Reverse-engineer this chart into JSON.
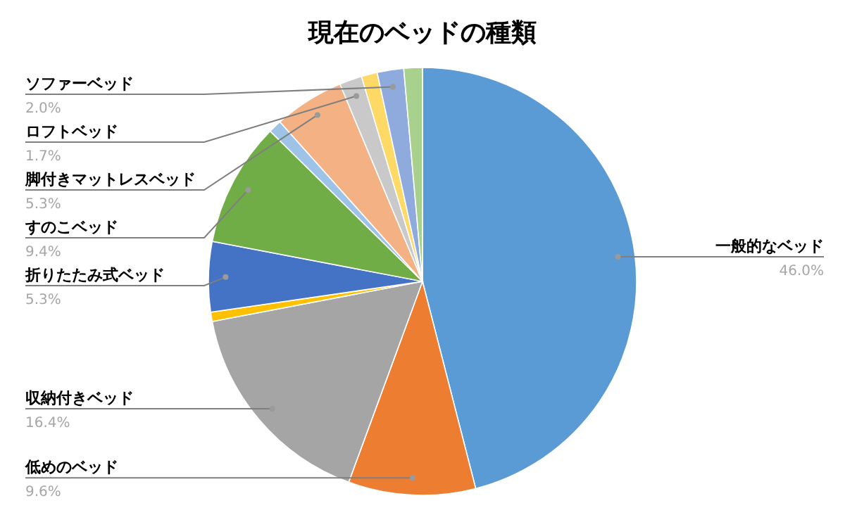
{
  "chart_data": {
    "type": "pie",
    "title": "現在のベッドの種類",
    "categories": [
      "一般的なベッド",
      "低めのベッド",
      "収納付きベッド",
      null,
      "折りたたみ式ベッド",
      "すのこベッド",
      null,
      "脚付きマットレスベッド",
      "ロフトベッド",
      null,
      "ソファーベッド",
      null
    ],
    "values": [
      46.0,
      9.6,
      16.4,
      0.7,
      5.3,
      9.4,
      1.0,
      5.3,
      1.7,
      1.2,
      2.0,
      1.4
    ],
    "colors": [
      "#5b9bd5",
      "#ed7d31",
      "#a5a5a5",
      "#ffc000",
      "#4472c4",
      "#70ad47",
      "#9dc3e6",
      "#f4b183",
      "#c9c9c9",
      "#ffd966",
      "#8faadc",
      "#a9d18e"
    ],
    "value_labels": [
      "46.0%",
      "9.6%",
      "16.4%",
      null,
      "5.3%",
      "9.4%",
      null,
      "5.3%",
      "1.7%",
      null,
      "2.0%",
      null
    ]
  }
}
